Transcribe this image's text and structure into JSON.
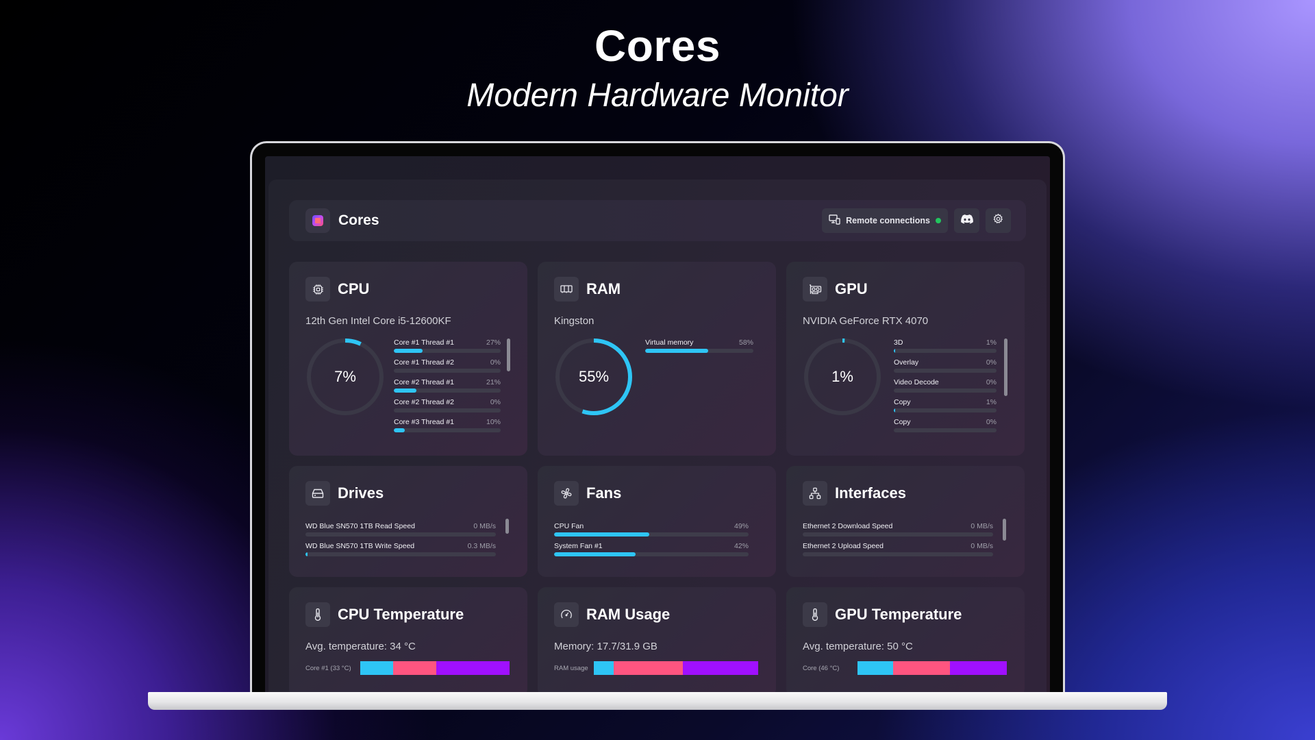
{
  "hero": {
    "title": "Cores",
    "subtitle": "Modern Hardware Monitor"
  },
  "app": {
    "title": "Cores",
    "remote_connections_label": "Remote connections",
    "remote_status_color": "#22c55e",
    "discord_icon": "discord-icon",
    "settings_icon": "gear-icon"
  },
  "colors": {
    "accent": "#2ec5f5",
    "track": "#3e3c4a",
    "segment_cyan": "#2ec5f5",
    "segment_pink": "#ff5580",
    "segment_purple": "#a010ff"
  },
  "cpu": {
    "title": "CPU",
    "icon": "cpu-chip-icon",
    "model": "12th Gen Intel Core i5-12600KF",
    "usage_label": "7%",
    "usage_value": 7,
    "threads": [
      {
        "label": "Core #1 Thread #1",
        "value_label": "27%",
        "value": 27
      },
      {
        "label": "Core #1 Thread #2",
        "value_label": "0%",
        "value": 0
      },
      {
        "label": "Core #2 Thread #1",
        "value_label": "21%",
        "value": 21
      },
      {
        "label": "Core #2 Thread #2",
        "value_label": "0%",
        "value": 0
      },
      {
        "label": "Core #3 Thread #1",
        "value_label": "10%",
        "value": 10
      }
    ]
  },
  "ram": {
    "title": "RAM",
    "icon": "memory-module-icon",
    "vendor": "Kingston",
    "usage_label": "55%",
    "usage_value": 55,
    "items": [
      {
        "label": "Virtual memory",
        "value_label": "58%",
        "value": 58
      }
    ]
  },
  "gpu": {
    "title": "GPU",
    "icon": "graphics-card-icon",
    "model": "NVIDIA GeForce RTX 4070",
    "usage_label": "1%",
    "usage_value": 1,
    "engines": [
      {
        "label": "3D",
        "value_label": "1%",
        "value": 1
      },
      {
        "label": "Overlay",
        "value_label": "0%",
        "value": 0
      },
      {
        "label": "Video Decode",
        "value_label": "0%",
        "value": 0
      },
      {
        "label": "Copy",
        "value_label": "1%",
        "value": 1
      },
      {
        "label": "Copy",
        "value_label": "0%",
        "value": 0
      }
    ]
  },
  "drives": {
    "title": "Drives",
    "icon": "hard-drive-icon",
    "items": [
      {
        "label": "WD Blue SN570 1TB Read Speed",
        "value_label": "0 MB/s",
        "value": 0
      },
      {
        "label": "WD Blue SN570 1TB Write Speed",
        "value_label": "0.3 MB/s",
        "value": 1
      }
    ]
  },
  "fans": {
    "title": "Fans",
    "icon": "fan-icon",
    "items": [
      {
        "label": "CPU Fan",
        "value_label": "49%",
        "value": 49
      },
      {
        "label": "System Fan #1",
        "value_label": "42%",
        "value": 42
      }
    ]
  },
  "interfaces": {
    "title": "Interfaces",
    "icon": "network-icon",
    "items": [
      {
        "label": "Ethernet 2 Download Speed",
        "value_label": "0 MB/s",
        "value": 0
      },
      {
        "label": "Ethernet 2 Upload Speed",
        "value_label": "0 MB/s",
        "value": 0
      }
    ]
  },
  "cpu_temperature": {
    "title": "CPU Temperature",
    "icon": "thermometer-icon",
    "summary": "Avg. temperature: 34 °C",
    "row_label": "Core #1 (33 °C)",
    "segments": [
      22,
      29,
      49
    ]
  },
  "ram_usage": {
    "title": "RAM Usage",
    "icon": "gauge-icon",
    "summary": "Memory: 17.7/31.9 GB",
    "row_label": "RAM usage",
    "segments": [
      12,
      42,
      46
    ]
  },
  "gpu_temperature": {
    "title": "GPU Temperature",
    "icon": "thermometer-icon",
    "summary": "Avg. temperature: 50 °C",
    "row_label": "Core (46 °C)",
    "segments": [
      24,
      38,
      38
    ]
  }
}
